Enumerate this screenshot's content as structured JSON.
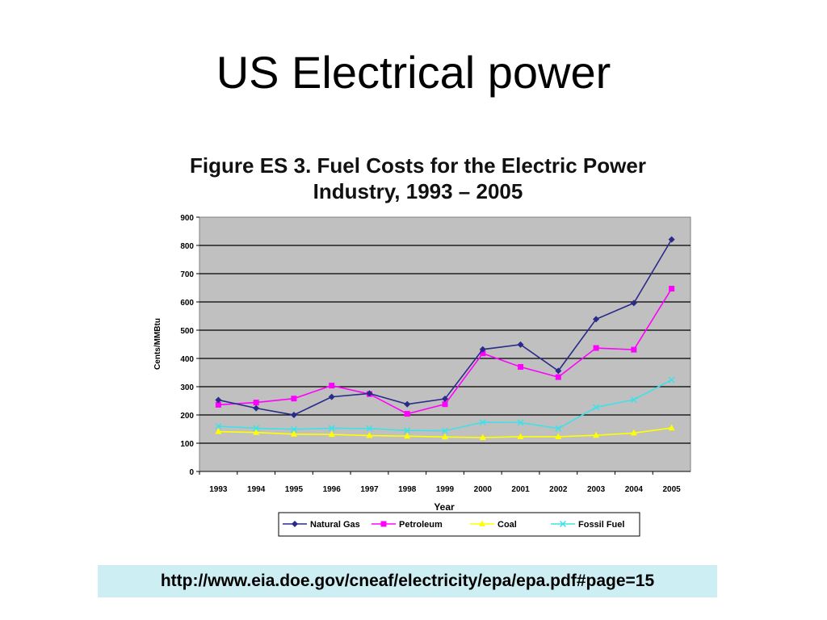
{
  "slide": {
    "title": "US Electrical power"
  },
  "source": {
    "link_text": "http://www.eia.doe.gov/cneaf/electricity/epa/epa.pdf#page=15"
  },
  "chart_data": {
    "type": "line",
    "title_line1": "Figure ES 3.  Fuel Costs for the Electric Power",
    "title_line2": "Industry, 1993 – 2005",
    "xlabel": "Year",
    "ylabel": "Cents/MMBtu",
    "categories": [
      "1993",
      "1994",
      "1995",
      "1996",
      "1997",
      "1998",
      "1999",
      "2000",
      "2001",
      "2002",
      "2003",
      "2004",
      "2005"
    ],
    "ylim": [
      0,
      900
    ],
    "yticks": [
      0,
      100,
      200,
      300,
      400,
      500,
      600,
      700,
      800,
      900
    ],
    "grid": true,
    "legend_position": "bottom",
    "series": [
      {
        "name": "Natural Gas",
        "color": "#2a2a8a",
        "marker": "diamond",
        "values": [
          253,
          224,
          200,
          264,
          276,
          238,
          257,
          432,
          449,
          356,
          539,
          596,
          821
        ]
      },
      {
        "name": "Petroleum",
        "color": "#ff00ff",
        "marker": "square",
        "values": [
          236,
          244,
          258,
          304,
          274,
          204,
          238,
          418,
          370,
          334,
          437,
          431,
          647
        ]
      },
      {
        "name": "Coal",
        "color": "#ffff00",
        "marker": "triangle",
        "values": [
          141,
          138,
          132,
          131,
          127,
          125,
          122,
          120,
          123,
          123,
          128,
          136,
          154
        ]
      },
      {
        "name": "Fossil Fuel",
        "color": "#40e0e8",
        "marker": "x",
        "values": [
          160,
          153,
          149,
          153,
          152,
          145,
          144,
          174,
          173,
          152,
          227,
          254,
          324
        ]
      }
    ]
  }
}
